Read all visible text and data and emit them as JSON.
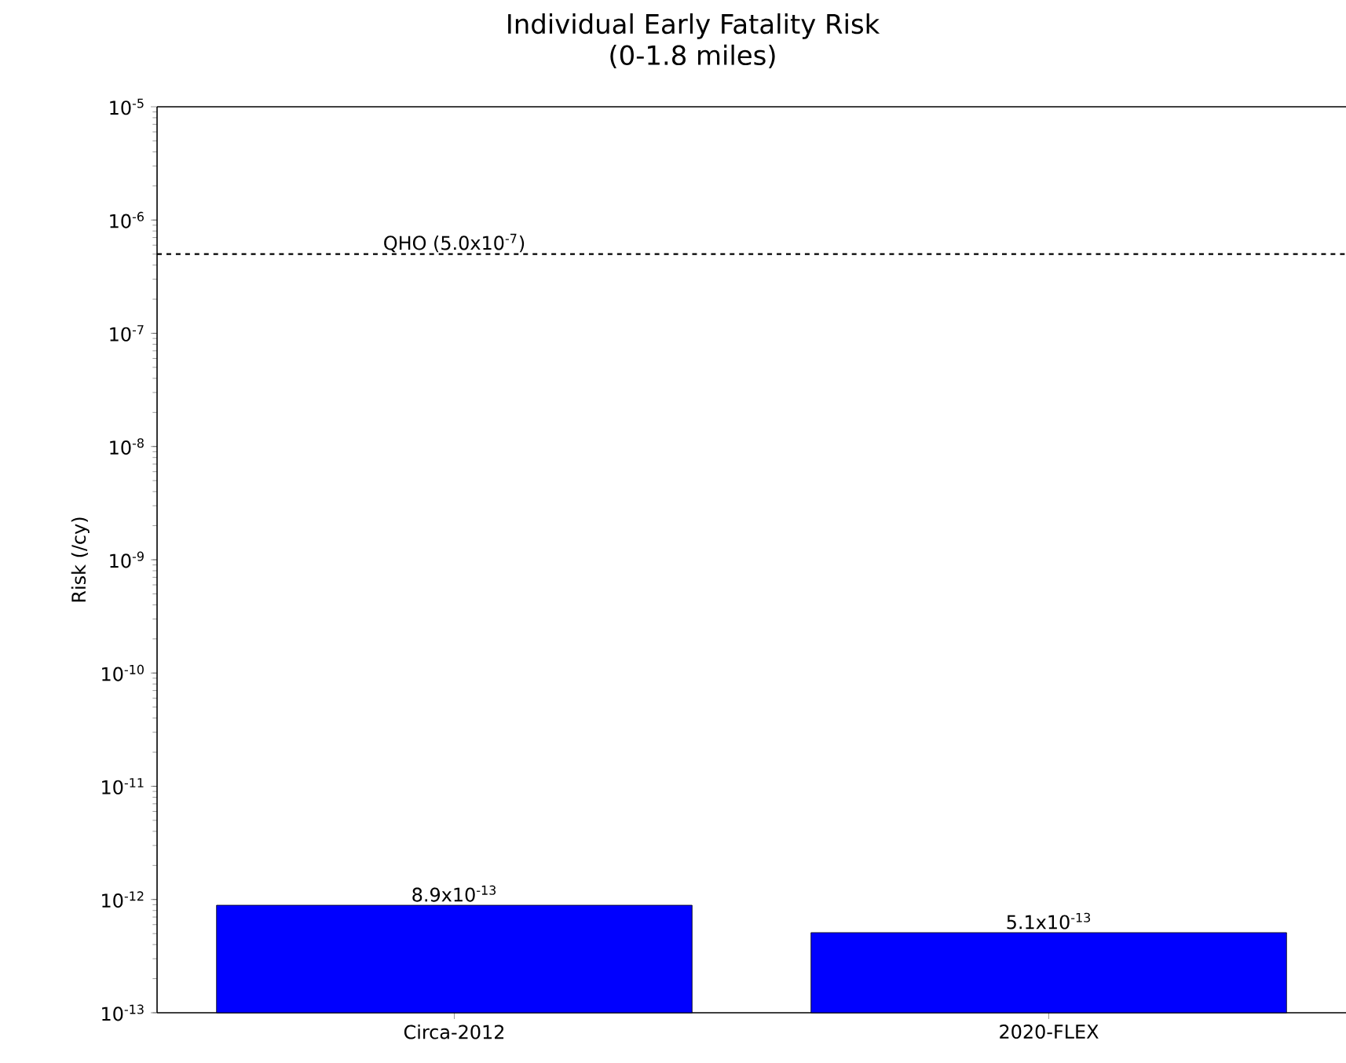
{
  "chart_data": {
    "type": "bar",
    "title": "Individual Early Fatality Risk",
    "subtitle": "(0-1.8 miles)",
    "ylabel": "Risk (/cy)",
    "categories": [
      "Circa-2012",
      "2020-FLEX"
    ],
    "values": [
      8.9e-13,
      5.1e-13
    ],
    "color": "#0000ff",
    "value_labels": [
      "8.9x10$^{-13}$",
      "5.1x10$^{-13}$"
    ],
    "log": true,
    "ylim": [
      1e-13,
      1e-05
    ],
    "yticks": [
      {
        "value": 1e-13,
        "label": "10$^{-13}$"
      },
      {
        "value": 1e-12,
        "label": "10$^{-12}$"
      },
      {
        "value": 1e-11,
        "label": "10$^{-11}$"
      },
      {
        "value": 1e-10,
        "label": "10$^{-10}$"
      },
      {
        "value": 1e-09,
        "label": "10$^{-9}$"
      },
      {
        "value": 1e-08,
        "label": "10$^{-8}$"
      },
      {
        "value": 1e-07,
        "label": "10$^{-7}$"
      },
      {
        "value": 1e-06,
        "label": "10$^{-6}$"
      },
      {
        "value": 1e-05,
        "label": "10$^{-5}$"
      }
    ],
    "ref_lines": [
      {
        "axis": "y",
        "value": 5e-07,
        "label": "QHO (5.0x10$^{-7}$)",
        "color": "#000000",
        "line_style": "dashed"
      }
    ]
  }
}
